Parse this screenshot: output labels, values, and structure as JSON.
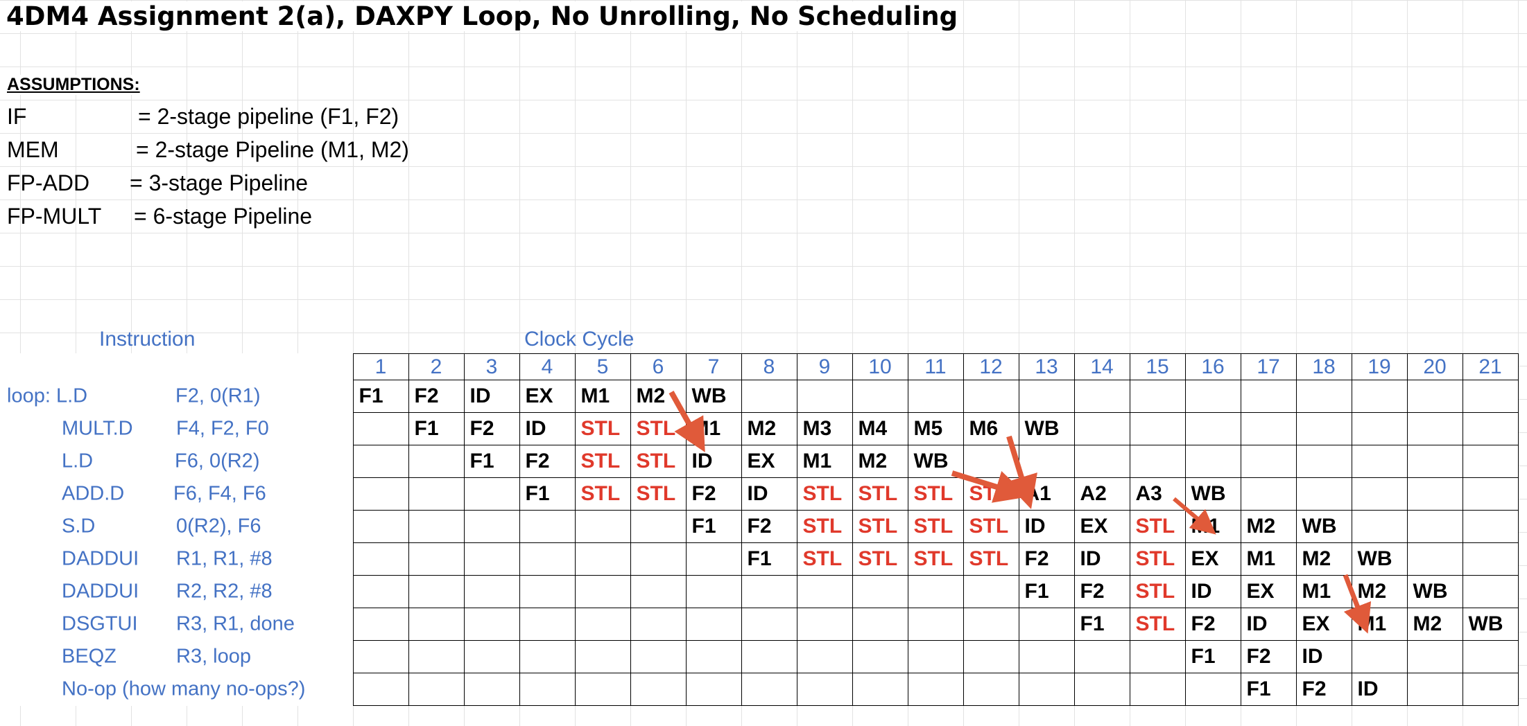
{
  "title": "4DM4 Assignment 2(a), DAXPY Loop, No Unrolling, No Scheduling",
  "assumptions": {
    "heading": "ASSUMPTIONS:",
    "rows": [
      {
        "key": "IF",
        "value": "= 2-stage pipeline (F1, F2)"
      },
      {
        "key": "MEM",
        "value": "= 2-stage Pipeline (M1, M2)"
      },
      {
        "key": "FP-ADD",
        "value": "= 3-stage Pipeline"
      },
      {
        "key": "FP-MULT",
        "value": "= 6-stage Pipeline"
      }
    ]
  },
  "headers": {
    "instruction": "Instruction",
    "clock_cycle": "Clock Cycle"
  },
  "cycles": [
    "1",
    "2",
    "3",
    "4",
    "5",
    "6",
    "7",
    "8",
    "9",
    "10",
    "11",
    "12",
    "13",
    "14",
    "15",
    "16",
    "17",
    "18",
    "19",
    "20",
    "21"
  ],
  "instructions": [
    {
      "op": "loop:  L.D",
      "args": "F2, 0(R1)",
      "stages": [
        "F1",
        "F2",
        "ID",
        "EX",
        "M1",
        "M2",
        "WB",
        "",
        "",
        "",
        "",
        "",
        "",
        "",
        "",
        "",
        "",
        "",
        "",
        "",
        ""
      ]
    },
    {
      "op": "MULT.D",
      "args": "F4, F2, F0",
      "stages": [
        "",
        "F1",
        "F2",
        "ID",
        "STL",
        "STL",
        "M1",
        "M2",
        "M3",
        "M4",
        "M5",
        "M6",
        "WB",
        "",
        "",
        "",
        "",
        "",
        "",
        "",
        ""
      ]
    },
    {
      "op": "L.D",
      "args": "F6, 0(R2)",
      "stages": [
        "",
        "",
        "F1",
        "F2",
        "STL",
        "STL",
        "ID",
        "EX",
        "M1",
        "M2",
        "WB",
        "",
        "",
        "",
        "",
        "",
        "",
        "",
        "",
        "",
        ""
      ]
    },
    {
      "op": "ADD.D",
      "args": "F6, F4, F6",
      "stages": [
        "",
        "",
        "",
        "F1",
        "STL",
        "STL",
        "F2",
        "ID",
        "STL",
        "STL",
        "STL",
        "STL",
        "A1",
        "A2",
        "A3",
        "WB",
        "",
        "",
        "",
        "",
        ""
      ]
    },
    {
      "op": "S.D",
      "args": "0(R2), F6",
      "stages": [
        "",
        "",
        "",
        "",
        "",
        "",
        "F1",
        "F2",
        "STL",
        "STL",
        "STL",
        "STL",
        "ID",
        "EX",
        "STL",
        "M1",
        "M2",
        "WB",
        "",
        "",
        ""
      ]
    },
    {
      "op": "DADDUI",
      "args": "R1, R1, #8",
      "stages": [
        "",
        "",
        "",
        "",
        "",
        "",
        "",
        "F1",
        "STL",
        "STL",
        "STL",
        "STL",
        "F2",
        "ID",
        "STL",
        "EX",
        "M1",
        "M2",
        "WB",
        "",
        ""
      ]
    },
    {
      "op": "DADDUI",
      "args": "R2, R2, #8",
      "stages": [
        "",
        "",
        "",
        "",
        "",
        "",
        "",
        "",
        "",
        "",
        "",
        "",
        "F1",
        "F2",
        "STL",
        "ID",
        "EX",
        "M1",
        "M2",
        "WB",
        ""
      ]
    },
    {
      "op": "DSGTUI",
      "args": "R3, R1, done",
      "stages": [
        "",
        "",
        "",
        "",
        "",
        "",
        "",
        "",
        "",
        "",
        "",
        "",
        "",
        "F1",
        "STL",
        "F2",
        "ID",
        "EX",
        "M1",
        "M2",
        "WB"
      ]
    },
    {
      "op": "BEQZ",
      "args": "R3, loop",
      "stages": [
        "",
        "",
        "",
        "",
        "",
        "",
        "",
        "",
        "",
        "",
        "",
        "",
        "",
        "",
        "",
        "F1",
        "F2",
        "ID",
        "",
        "",
        ""
      ]
    },
    {
      "op": "No-op (how many  no-ops?)",
      "args": "",
      "stages": [
        "",
        "",
        "",
        "",
        "",
        "",
        "",
        "",
        "",
        "",
        "",
        "",
        "",
        "",
        "",
        "",
        "F1",
        "F2",
        "ID",
        "",
        ""
      ]
    }
  ],
  "colors": {
    "stall": "#e0392b",
    "label_blue": "#4472c4",
    "arrow": "#e05a3a"
  }
}
